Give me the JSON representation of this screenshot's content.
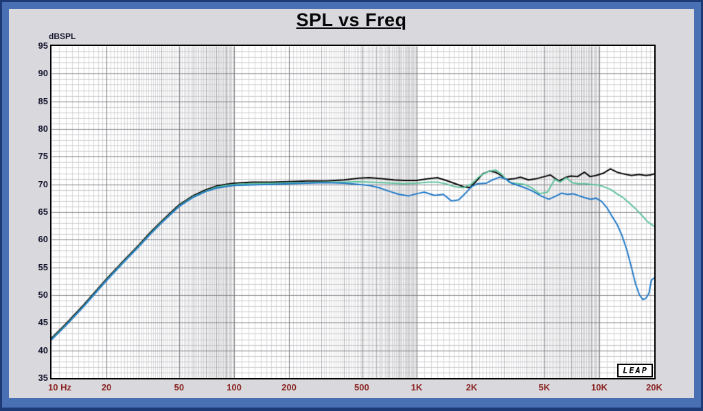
{
  "title": "SPL vs Freq",
  "logo": "LEAP",
  "axis": {
    "unit_label": "dBSPL"
  },
  "colors": {
    "frame_outer": "#1d3a77",
    "frame_blue": "#4a70b4",
    "background": "#d9d9dd",
    "plot_background": "#ffffff",
    "plot_border": "#000000",
    "x_tick_label": "#8a2422",
    "y_tick_label": "#15152e",
    "grid_minor_v": "#d7d7da",
    "grid_medium_v": "#ababaf",
    "grid_major": "#7c7c82",
    "grid_minor_h": "#c9c9cd"
  },
  "chart_data": {
    "type": "line",
    "title": "SPL vs Freq",
    "ylabel": "dBSPL",
    "xlabel": "",
    "x_scale": "log",
    "xlim": [
      10,
      20000
    ],
    "ylim": [
      35,
      95
    ],
    "y_major_step": 5,
    "y_minor_step": 1,
    "grid": true,
    "legend": "none",
    "y_ticks": [
      95,
      90,
      85,
      80,
      75,
      70,
      65,
      60,
      55,
      50,
      45,
      40,
      35
    ],
    "x_ticks": [
      {
        "label": "10 Hz",
        "value": 10,
        "align": "left"
      },
      {
        "label": "20",
        "value": 20
      },
      {
        "label": "50",
        "value": 50
      },
      {
        "label": "100",
        "value": 100
      },
      {
        "label": "200",
        "value": 200
      },
      {
        "label": "500",
        "value": 500
      },
      {
        "label": "1K",
        "value": 1000
      },
      {
        "label": "2K",
        "value": 2000
      },
      {
        "label": "5K",
        "value": 5000
      },
      {
        "label": "10K",
        "value": 10000
      },
      {
        "label": "20K",
        "value": 20000
      }
    ],
    "series": [
      {
        "name": "curve-black",
        "color": "#000000",
        "points": [
          [
            10,
            42.2
          ],
          [
            12,
            44.8
          ],
          [
            15,
            48.2
          ],
          [
            18,
            51.2
          ],
          [
            20,
            52.9
          ],
          [
            25,
            56.3
          ],
          [
            30,
            59.0
          ],
          [
            35,
            61.4
          ],
          [
            40,
            63.3
          ],
          [
            45,
            64.9
          ],
          [
            50,
            66.3
          ],
          [
            60,
            68.0
          ],
          [
            70,
            69.0
          ],
          [
            80,
            69.7
          ],
          [
            90,
            70.0
          ],
          [
            100,
            70.2
          ],
          [
            125,
            70.4
          ],
          [
            160,
            70.4
          ],
          [
            200,
            70.5
          ],
          [
            250,
            70.6
          ],
          [
            320,
            70.6
          ],
          [
            400,
            70.8
          ],
          [
            480,
            71.1
          ],
          [
            550,
            71.2
          ],
          [
            650,
            71.0
          ],
          [
            750,
            70.8
          ],
          [
            850,
            70.7
          ],
          [
            1000,
            70.7
          ],
          [
            1150,
            71.0
          ],
          [
            1300,
            71.2
          ],
          [
            1450,
            70.7
          ],
          [
            1600,
            70.2
          ],
          [
            1800,
            69.6
          ],
          [
            1950,
            69.4
          ],
          [
            2100,
            70.4
          ],
          [
            2300,
            71.9
          ],
          [
            2500,
            72.4
          ],
          [
            2700,
            72.2
          ],
          [
            2900,
            71.6
          ],
          [
            3100,
            70.9
          ],
          [
            3400,
            71.0
          ],
          [
            3700,
            71.3
          ],
          [
            4100,
            70.8
          ],
          [
            4500,
            71.0
          ],
          [
            5000,
            71.4
          ],
          [
            5400,
            71.7
          ],
          [
            6000,
            70.6
          ],
          [
            6600,
            71.3
          ],
          [
            7000,
            71.5
          ],
          [
            7600,
            71.4
          ],
          [
            8300,
            72.2
          ],
          [
            8900,
            71.4
          ],
          [
            9600,
            71.6
          ],
          [
            10500,
            72.0
          ],
          [
            11500,
            72.8
          ],
          [
            12500,
            72.2
          ],
          [
            13500,
            71.9
          ],
          [
            15000,
            71.6
          ],
          [
            16500,
            71.8
          ],
          [
            18000,
            71.6
          ],
          [
            19000,
            71.7
          ],
          [
            20000,
            71.9
          ]
        ]
      },
      {
        "name": "curve-green",
        "color": "#5ec29b",
        "points": [
          [
            10,
            42.0
          ],
          [
            12,
            44.6
          ],
          [
            15,
            48.0
          ],
          [
            18,
            51.0
          ],
          [
            20,
            52.7
          ],
          [
            25,
            56.1
          ],
          [
            30,
            58.8
          ],
          [
            35,
            61.2
          ],
          [
            40,
            63.1
          ],
          [
            45,
            64.7
          ],
          [
            50,
            66.1
          ],
          [
            60,
            67.8
          ],
          [
            70,
            68.8
          ],
          [
            80,
            69.5
          ],
          [
            90,
            69.8
          ],
          [
            100,
            70.0
          ],
          [
            125,
            70.1
          ],
          [
            160,
            70.2
          ],
          [
            200,
            70.3
          ],
          [
            250,
            70.3
          ],
          [
            320,
            70.4
          ],
          [
            400,
            70.4
          ],
          [
            480,
            70.5
          ],
          [
            550,
            70.4
          ],
          [
            650,
            70.3
          ],
          [
            750,
            70.2
          ],
          [
            850,
            70.1
          ],
          [
            1000,
            70.2
          ],
          [
            1150,
            70.4
          ],
          [
            1300,
            70.4
          ],
          [
            1450,
            70.1
          ],
          [
            1600,
            69.6
          ],
          [
            1800,
            69.4
          ],
          [
            2000,
            70.1
          ],
          [
            2200,
            71.4
          ],
          [
            2450,
            72.3
          ],
          [
            2700,
            72.6
          ],
          [
            2900,
            71.9
          ],
          [
            3200,
            70.4
          ],
          [
            3600,
            70.1
          ],
          [
            3900,
            70.0
          ],
          [
            4300,
            69.3
          ],
          [
            4700,
            68.3
          ],
          [
            5200,
            68.6
          ],
          [
            5700,
            70.9
          ],
          [
            6100,
            70.4
          ],
          [
            6600,
            71.2
          ],
          [
            7100,
            70.3
          ],
          [
            7700,
            70.1
          ],
          [
            8300,
            70.1
          ],
          [
            9000,
            70.0
          ],
          [
            9800,
            69.9
          ],
          [
            10500,
            69.6
          ],
          [
            11500,
            69.1
          ],
          [
            12500,
            68.3
          ],
          [
            13500,
            67.6
          ],
          [
            14500,
            66.7
          ],
          [
            15800,
            65.6
          ],
          [
            17000,
            64.5
          ],
          [
            18200,
            63.4
          ],
          [
            19000,
            62.9
          ],
          [
            20000,
            62.4
          ]
        ]
      },
      {
        "name": "curve-blue",
        "color": "#1e78c8",
        "points": [
          [
            10,
            41.9
          ],
          [
            12,
            44.5
          ],
          [
            15,
            47.9
          ],
          [
            18,
            50.9
          ],
          [
            20,
            52.6
          ],
          [
            25,
            56.0
          ],
          [
            30,
            58.7
          ],
          [
            35,
            61.1
          ],
          [
            40,
            63.0
          ],
          [
            45,
            64.6
          ],
          [
            50,
            66.0
          ],
          [
            60,
            67.7
          ],
          [
            70,
            68.7
          ],
          [
            80,
            69.3
          ],
          [
            90,
            69.6
          ],
          [
            100,
            69.8
          ],
          [
            125,
            69.9
          ],
          [
            160,
            70.0
          ],
          [
            200,
            70.1
          ],
          [
            250,
            70.2
          ],
          [
            320,
            70.3
          ],
          [
            400,
            70.2
          ],
          [
            480,
            70.0
          ],
          [
            550,
            69.8
          ],
          [
            620,
            69.4
          ],
          [
            700,
            68.8
          ],
          [
            800,
            68.2
          ],
          [
            900,
            67.9
          ],
          [
            1000,
            68.3
          ],
          [
            1100,
            68.6
          ],
          [
            1250,
            68.0
          ],
          [
            1400,
            68.2
          ],
          [
            1550,
            67.0
          ],
          [
            1700,
            67.2
          ],
          [
            1850,
            68.4
          ],
          [
            2000,
            69.6
          ],
          [
            2150,
            70.1
          ],
          [
            2400,
            70.2
          ],
          [
            2600,
            70.8
          ],
          [
            2850,
            71.3
          ],
          [
            3100,
            70.9
          ],
          [
            3300,
            70.2
          ],
          [
            3600,
            69.8
          ],
          [
            3900,
            69.4
          ],
          [
            4300,
            68.8
          ],
          [
            4800,
            67.9
          ],
          [
            5300,
            67.3
          ],
          [
            5800,
            67.9
          ],
          [
            6200,
            68.4
          ],
          [
            6700,
            68.2
          ],
          [
            7200,
            68.3
          ],
          [
            7800,
            67.9
          ],
          [
            8300,
            67.6
          ],
          [
            9000,
            67.3
          ],
          [
            9600,
            67.5
          ],
          [
            10300,
            66.9
          ],
          [
            11000,
            65.8
          ],
          [
            11700,
            64.3
          ],
          [
            12500,
            62.8
          ],
          [
            13300,
            60.8
          ],
          [
            14200,
            58.0
          ],
          [
            15000,
            55.0
          ],
          [
            15800,
            52.0
          ],
          [
            16600,
            50.0
          ],
          [
            17300,
            49.2
          ],
          [
            18000,
            49.4
          ],
          [
            18700,
            50.3
          ],
          [
            19300,
            52.7
          ],
          [
            20000,
            53.1
          ]
        ]
      }
    ]
  }
}
